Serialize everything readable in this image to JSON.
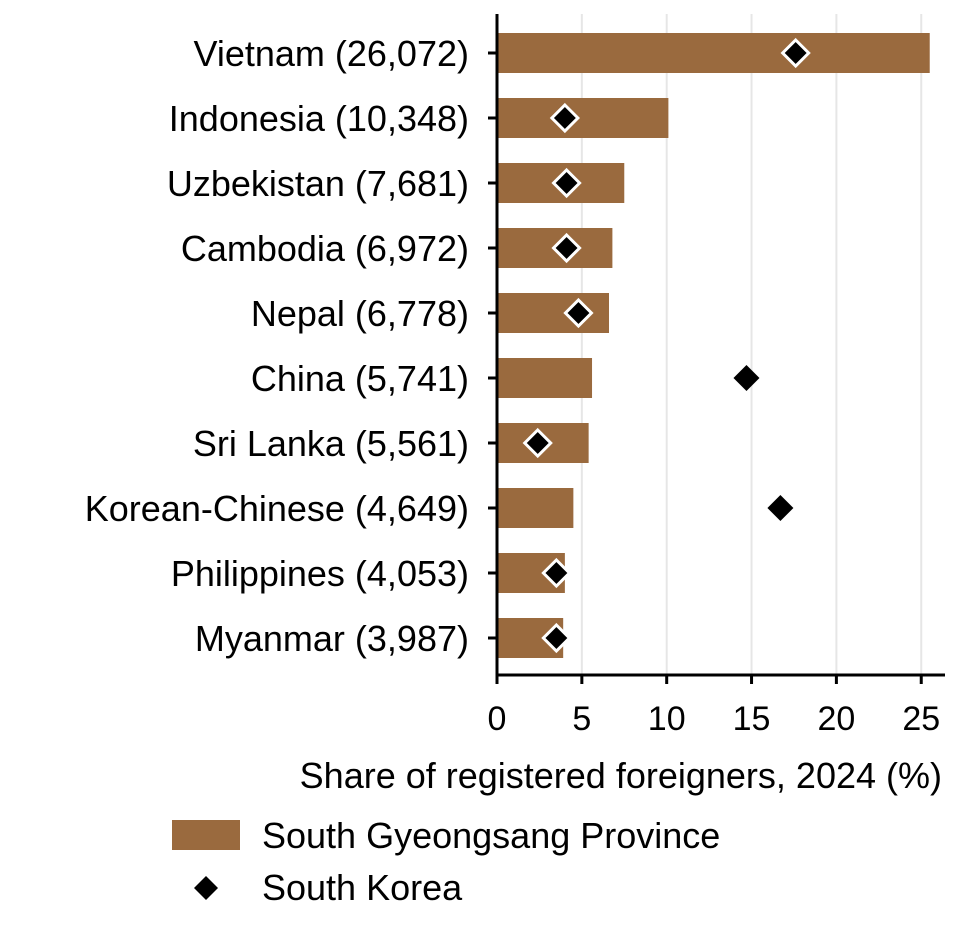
{
  "chart_data": {
    "type": "bar",
    "orientation": "horizontal",
    "categories": [
      "Vietnam (26,072)",
      "Indonesia (10,348)",
      "Uzbekistan (7,681)",
      "Cambodia (6,972)",
      "Nepal (6,778)",
      "China (5,741)",
      "Sri Lanka (5,561)",
      "Korean-Chinese (4,649)",
      "Philippines (4,053)",
      "Myanmar (3,987)"
    ],
    "series": [
      {
        "name": "South Gyeongsang Province",
        "mark": "bar",
        "color": "#9a6a3e",
        "values": [
          25.5,
          10.1,
          7.5,
          6.8,
          6.6,
          5.6,
          5.4,
          4.5,
          4.0,
          3.9
        ]
      },
      {
        "name": "South Korea",
        "mark": "diamond",
        "color": "#000000",
        "values": [
          17.6,
          4.0,
          4.1,
          4.1,
          4.8,
          14.7,
          2.4,
          16.7,
          3.5,
          3.5
        ]
      }
    ],
    "xlabel": "Share of registered foreigners, 2024 (%)",
    "ylabel": "",
    "xlim": [
      0,
      26.4
    ],
    "xticks": [
      0,
      5,
      10,
      15,
      20,
      25
    ],
    "grid": "vertical",
    "legend_position": "bottom"
  }
}
